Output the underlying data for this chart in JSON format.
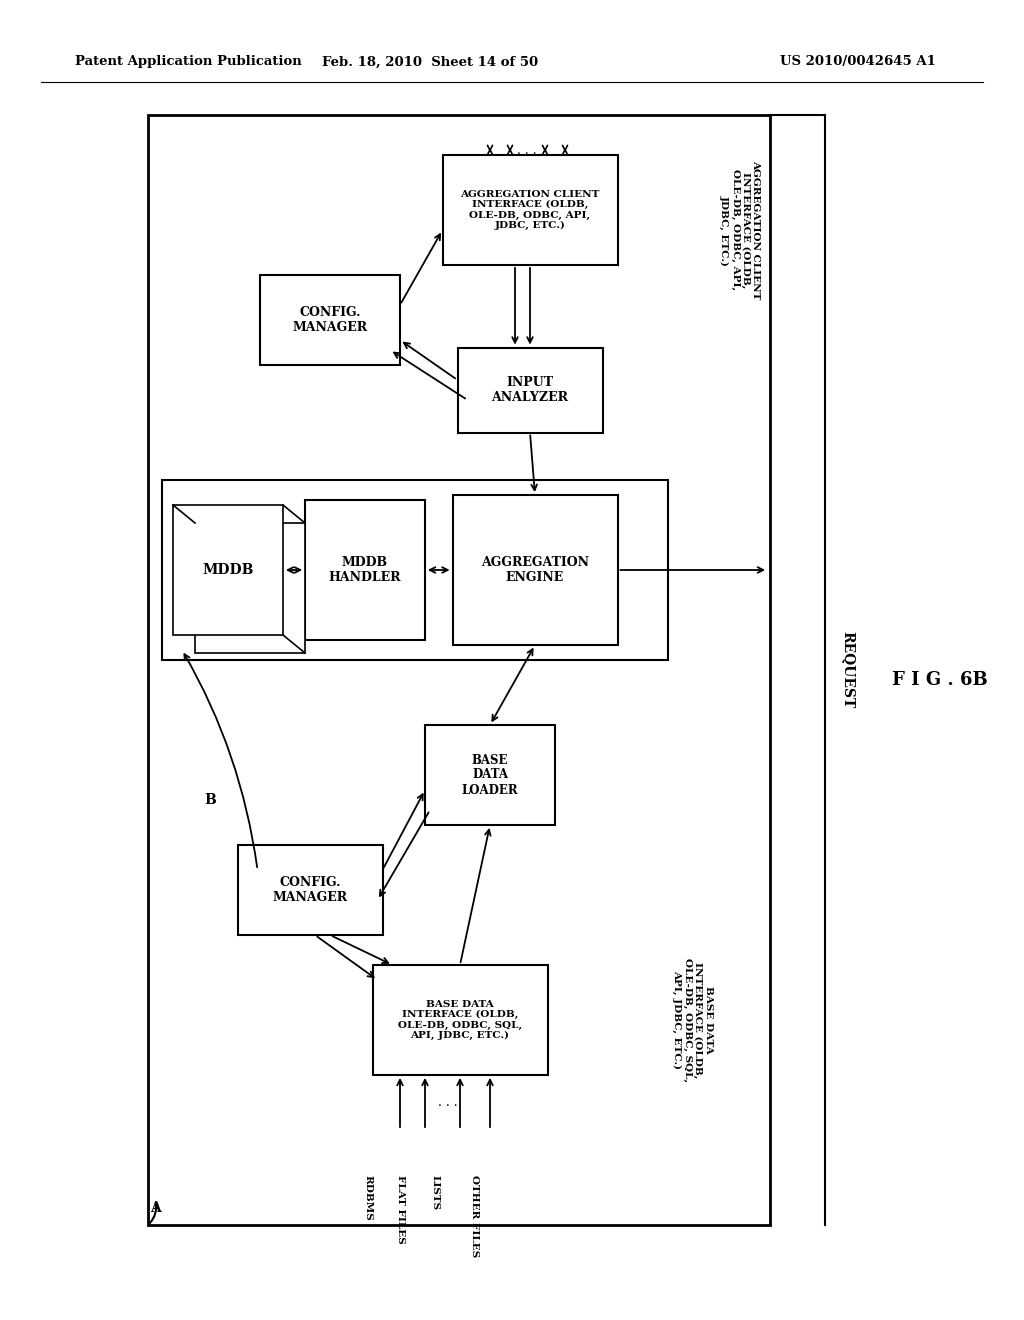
{
  "header_left": "Patent Application Publication",
  "header_mid": "Feb. 18, 2010  Sheet 14 of 50",
  "header_right": "US 2010/0042645 A1",
  "figure_label": "F I G . 6B",
  "bg_color": "#ffffff",
  "text_color": "#000000"
}
